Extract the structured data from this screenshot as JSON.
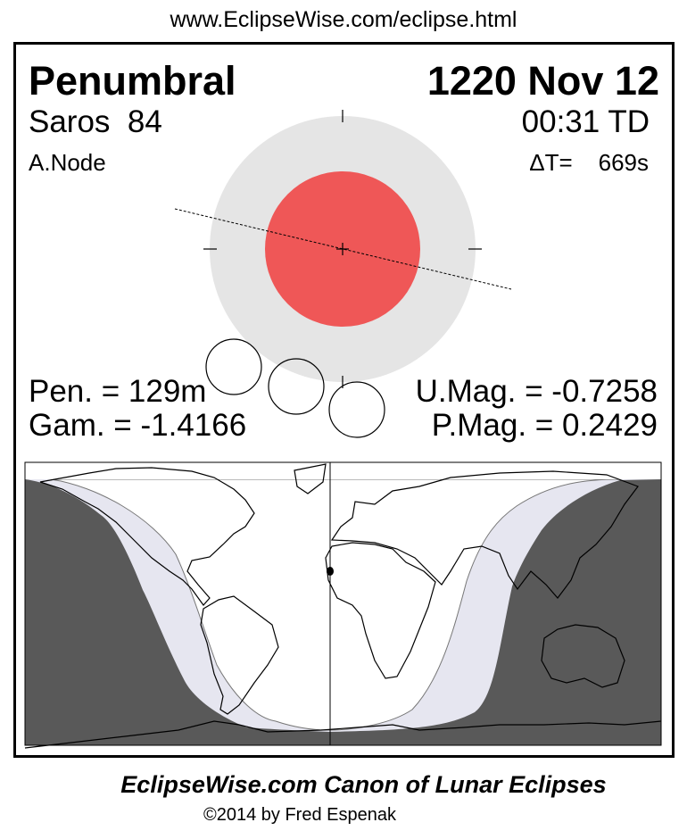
{
  "url": "www.EclipseWise.com/eclipse.html",
  "eclipse": {
    "type": "Penumbral",
    "date": "1220 Nov 12",
    "saros_label": "Saros",
    "saros": "84",
    "time": "00:31 TD",
    "node": "A.Node",
    "delta_t_label": "ΔT=",
    "delta_t": "669s",
    "pen": "Pen. = 129m",
    "gam": "Gam. = -1.4166",
    "umag": "U.Mag. = -0.7258",
    "pmag": "P.Mag. = 0.2429"
  },
  "colors": {
    "penumbra": "#e5e5e5",
    "umbra": "#ef5757",
    "night": "#595959",
    "penumbral_zone": "#e6e6f0"
  },
  "footer": {
    "title": "EclipseWise.com Canon of Lunar Eclipses",
    "copyright": "©2014 by Fred Espenak"
  }
}
